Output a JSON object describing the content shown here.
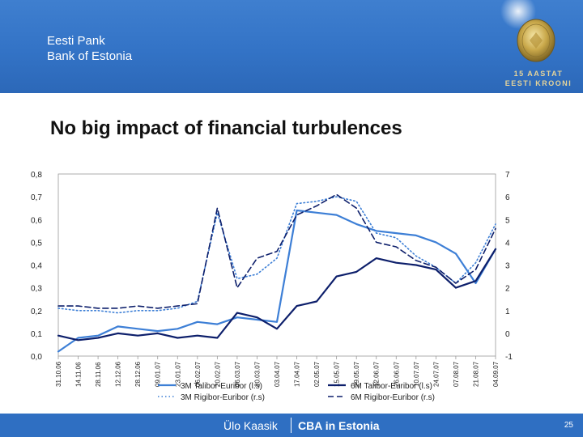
{
  "header": {
    "bank_name_et": "Eesti Pank",
    "bank_name_en": "Bank of Estonia",
    "emblem_line1": "15 AASTAT",
    "emblem_line2": "EESTI KROONI"
  },
  "slide": {
    "title": "No big impact of financial turbulences"
  },
  "footer": {
    "author": "Ülo Kaasik",
    "topic": "CBA in Estonia",
    "page": "25"
  },
  "colors": {
    "header_blue": "#3373c6",
    "footer_blue": "#2f6fc2",
    "series_light_blue": "#3d7fd6",
    "series_dark_navy": "#0d1f6b"
  },
  "chart_data": {
    "type": "line",
    "x": [
      "31.10.06",
      "14.11.06",
      "28.11.06",
      "12.12.06",
      "28.12.06",
      "09.01.07",
      "23.01.07",
      "06.02.07",
      "20.02.07",
      "06.03.07",
      "20.03.07",
      "03.04.07",
      "17.04.07",
      "02.05.07",
      "15.05.07",
      "29.05.07",
      "12.06.07",
      "26.06.07",
      "10.07.07",
      "24.07.07",
      "07.08.07",
      "21.08.07",
      "04.09.07"
    ],
    "y_left": {
      "ticks": [
        "0,0",
        "0,1",
        "0,2",
        "0,3",
        "0,4",
        "0,5",
        "0,6",
        "0,7",
        "0,8"
      ],
      "range": [
        0,
        0.8
      ]
    },
    "y_right": {
      "ticks": [
        "-1",
        "0",
        "1",
        "2",
        "3",
        "4",
        "5",
        "6",
        "7"
      ],
      "range": [
        -1,
        7
      ]
    },
    "series": [
      {
        "name": "3M Talibor-Euribor (l.s)",
        "axis": "left",
        "color": "#3d7fd6",
        "style": "solid",
        "width": 2.2,
        "values": [
          0.02,
          0.08,
          0.09,
          0.13,
          0.12,
          0.11,
          0.12,
          0.15,
          0.14,
          0.17,
          0.16,
          0.15,
          0.64,
          0.63,
          0.62,
          0.58,
          0.55,
          0.54,
          0.53,
          0.5,
          0.45,
          0.32,
          0.47
        ]
      },
      {
        "name": "6M Talibor-Euribor (l.s)",
        "axis": "left",
        "color": "#0d1f6b",
        "style": "solid",
        "width": 2.2,
        "values": [
          0.09,
          0.07,
          0.08,
          0.1,
          0.09,
          0.1,
          0.08,
          0.09,
          0.08,
          0.19,
          0.17,
          0.12,
          0.22,
          0.24,
          0.35,
          0.37,
          0.43,
          0.41,
          0.4,
          0.38,
          0.3,
          0.33,
          0.47
        ]
      },
      {
        "name": "3M Rigibor-Euribor (r.s)",
        "axis": "right",
        "color": "#3d7fd6",
        "style": "dotted",
        "width": 1.6,
        "values": [
          1.1,
          1.0,
          1.0,
          0.9,
          1.0,
          1.0,
          1.1,
          1.4,
          5.3,
          2.4,
          2.6,
          3.3,
          5.7,
          5.8,
          6.0,
          5.8,
          4.4,
          4.2,
          3.4,
          2.9,
          2.2,
          3.1,
          4.8
        ]
      },
      {
        "name": "6M Rigibor-Euribor (r.s)",
        "axis": "right",
        "color": "#0d1f6b",
        "style": "dashed",
        "width": 1.6,
        "values": [
          1.2,
          1.2,
          1.1,
          1.1,
          1.2,
          1.1,
          1.2,
          1.3,
          5.5,
          2.0,
          3.3,
          3.6,
          5.2,
          5.6,
          6.1,
          5.5,
          4.0,
          3.8,
          3.2,
          2.9,
          2.2,
          2.8,
          4.6
        ]
      }
    ]
  }
}
